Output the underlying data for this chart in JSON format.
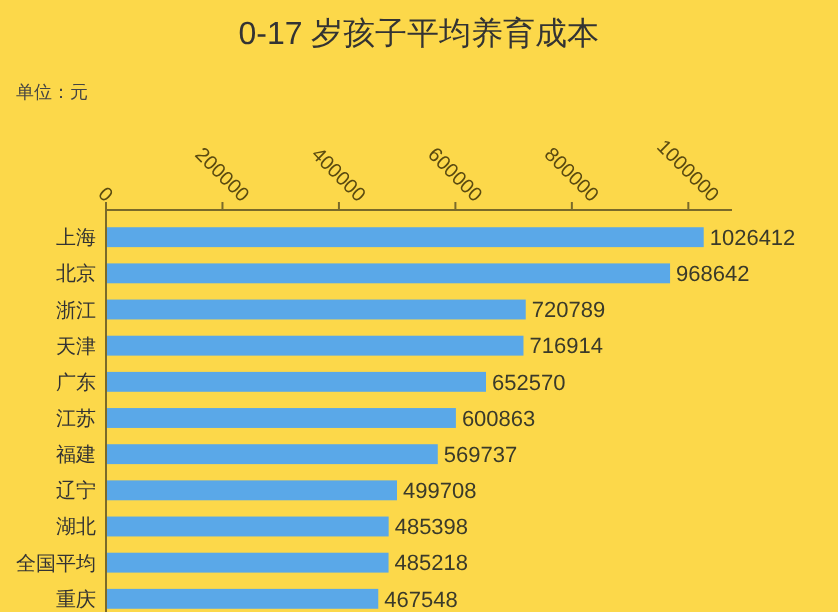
{
  "chart_data": {
    "type": "bar",
    "orientation": "horizontal",
    "title": "0-17 岁孩子平均养育成本",
    "subtitle": "单位：元",
    "categories": [
      "上海",
      "北京",
      "浙江",
      "天津",
      "广东",
      "江苏",
      "福建",
      "辽宁",
      "湖北",
      "全国平均",
      "重庆"
    ],
    "values": [
      1026412,
      968642,
      720789,
      716914,
      652570,
      600863,
      569737,
      499708,
      485398,
      485218,
      467548
    ],
    "color": "#5aa8e8",
    "data_labels": true,
    "xlim": [
      0,
      1075000
    ],
    "xticks": [
      0,
      200000,
      400000,
      600000,
      800000,
      1000000
    ],
    "grid": false
  }
}
